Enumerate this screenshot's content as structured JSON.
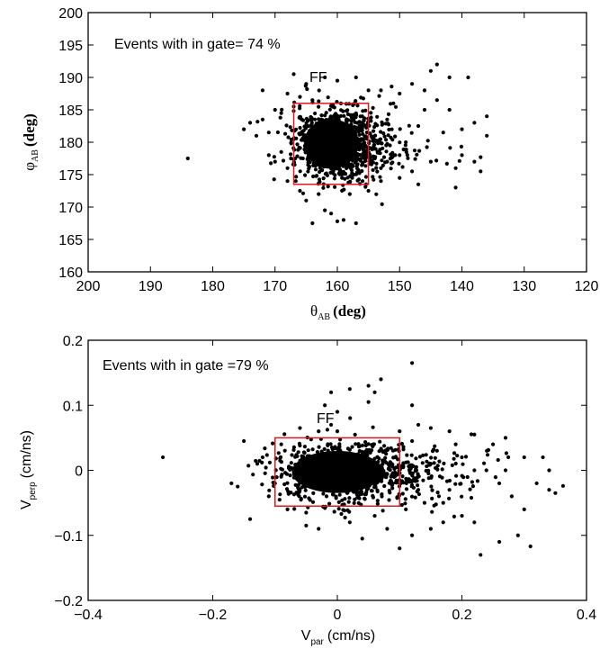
{
  "chart_data": [
    {
      "type": "scatter",
      "title": "",
      "xlabel": "θ_AB (deg)",
      "xlabel_symbol": "θ",
      "xlabel_sub": "AB",
      "xlabel_unit": "(deg)",
      "ylabel": "φ_AB (deg)",
      "ylabel_symbol": "φ",
      "ylabel_sub": "AB",
      "ylabel_unit": "(deg)",
      "x_reversed": true,
      "xlim": [
        200,
        120
      ],
      "ylim": [
        160,
        200
      ],
      "xticks": [
        200,
        190,
        180,
        170,
        160,
        150,
        140,
        130,
        120
      ],
      "yticks": [
        160,
        165,
        170,
        175,
        180,
        185,
        190,
        195,
        200
      ],
      "annotation": "Events with in gate= 74 %",
      "label_ff": "FF",
      "gate": {
        "x": [
          155,
          167
        ],
        "y": [
          173.5,
          186
        ],
        "color": "#e0191f"
      },
      "points": [
        [
          184,
          177.5
        ],
        [
          175,
          182
        ],
        [
          174,
          183
        ],
        [
          173,
          181
        ],
        [
          171,
          181.5
        ],
        [
          172,
          188
        ],
        [
          168,
          187.5
        ],
        [
          167,
          190.5
        ],
        [
          165,
          189
        ],
        [
          162,
          190
        ],
        [
          160,
          189.5
        ],
        [
          157,
          190
        ],
        [
          163,
          172
        ],
        [
          165,
          171
        ],
        [
          164,
          167.5
        ],
        [
          161,
          169
        ],
        [
          159,
          168
        ],
        [
          157,
          167.5
        ],
        [
          160,
          167.8
        ],
        [
          162,
          169.5
        ],
        [
          166,
          172.5
        ],
        [
          158,
          172
        ],
        [
          155,
          172.5
        ],
        [
          153,
          174
        ],
        [
          150,
          174.5
        ],
        [
          147,
          173.5
        ],
        [
          141,
          173
        ],
        [
          137,
          175.5
        ],
        [
          138,
          177
        ],
        [
          140,
          178
        ],
        [
          136,
          181
        ],
        [
          136,
          184
        ],
        [
          138,
          183
        ],
        [
          139,
          190
        ],
        [
          142,
          190
        ],
        [
          144,
          192
        ],
        [
          145,
          191
        ],
        [
          146,
          188
        ],
        [
          150,
          187.5
        ],
        [
          148,
          189
        ],
        [
          153,
          188
        ],
        [
          155,
          188
        ],
        [
          144,
          186.5
        ],
        [
          146,
          185
        ],
        [
          151,
          186
        ],
        [
          142,
          185
        ],
        [
          140,
          182
        ],
        [
          143,
          181.5
        ],
        [
          147,
          182.5
        ],
        [
          149,
          180
        ],
        [
          152,
          177
        ],
        [
          150,
          178
        ],
        [
          145,
          177
        ],
        [
          141,
          176
        ],
        [
          148,
          175.5
        ],
        [
          153,
          176
        ],
        [
          154,
          179
        ],
        [
          152,
          183.5
        ],
        [
          156,
          184
        ],
        [
          170,
          177
        ],
        [
          169,
          178.5
        ],
        [
          168,
          176
        ],
        [
          171,
          178
        ],
        [
          172,
          183.5
        ],
        [
          170,
          185
        ],
        [
          169,
          184.5
        ],
        [
          168,
          174
        ],
        [
          167,
          185.5
        ],
        [
          166,
          187
        ],
        [
          164,
          186.5
        ]
      ]
    },
    {
      "type": "scatter",
      "title": "",
      "xlabel": "V_par (cm/ns)",
      "xlabel_symbol": "V",
      "xlabel_sub": "par",
      "xlabel_unit": "(cm/ns)",
      "ylabel": "V_perp (cm/ns)",
      "ylabel_symbol": "V",
      "ylabel_sub": "perp",
      "ylabel_unit": "(cm/ns)",
      "xlim": [
        -0.4,
        0.4
      ],
      "ylim": [
        -0.2,
        0.2
      ],
      "xticks": [
        -0.4,
        -0.2,
        0,
        0.2,
        0.4
      ],
      "xtick_labels": [
        "−0.4",
        "−0.2",
        "0",
        "0.2",
        "0.4"
      ],
      "yticks": [
        -0.2,
        -0.1,
        0,
        0.1,
        0.2
      ],
      "ytick_labels": [
        "−0.2",
        "−0.1",
        "0",
        "0.1",
        "0.2"
      ],
      "annotation": "Events with in gate =79 %",
      "label_ff": "FF",
      "gate": {
        "x": [
          -0.1,
          0.1
        ],
        "y": [
          -0.055,
          0.05
        ],
        "color": "#e0191f"
      },
      "points": [
        [
          -0.28,
          0.02
        ],
        [
          -0.17,
          -0.02
        ],
        [
          -0.16,
          -0.025
        ],
        [
          -0.15,
          0.045
        ],
        [
          -0.14,
          -0.075
        ],
        [
          -0.12,
          0.02
        ],
        [
          -0.11,
          -0.04
        ],
        [
          -0.06,
          0.065
        ],
        [
          -0.03,
          0.06
        ],
        [
          -0.01,
          0.07
        ],
        [
          -0.02,
          0.1
        ],
        [
          0,
          0.09
        ],
        [
          -0.01,
          0.12
        ],
        [
          0.02,
          0.125
        ],
        [
          0.05,
          0.13
        ],
        [
          0.06,
          0.12
        ],
        [
          0.07,
          0.14
        ],
        [
          0.05,
          0.105
        ],
        [
          0.12,
          0.165
        ],
        [
          0.12,
          0.1
        ],
        [
          0.13,
          0.07
        ],
        [
          0.15,
          0.065
        ],
        [
          0.18,
          0.06
        ],
        [
          0.22,
          0.055
        ],
        [
          0.25,
          0.04
        ],
        [
          0.27,
          0.05
        ],
        [
          0.3,
          0.02
        ],
        [
          0.32,
          -0.02
        ],
        [
          0.34,
          -0.03
        ],
        [
          0.35,
          -0.035
        ],
        [
          0.33,
          0.02
        ],
        [
          0.29,
          -0.1
        ],
        [
          0.26,
          -0.11
        ],
        [
          0.23,
          -0.13
        ],
        [
          0.22,
          -0.08
        ],
        [
          0.2,
          -0.07
        ],
        [
          0.17,
          -0.08
        ],
        [
          0.15,
          -0.09
        ],
        [
          0.12,
          -0.1
        ],
        [
          0.1,
          -0.12
        ],
        [
          0.08,
          -0.09
        ],
        [
          0.04,
          -0.105
        ],
        [
          0.02,
          -0.08
        ],
        [
          -0.03,
          -0.09
        ],
        [
          -0.05,
          -0.085
        ],
        [
          0.3,
          -0.06
        ],
        [
          0.28,
          -0.04
        ],
        [
          0.24,
          0.03
        ],
        [
          0.2,
          0.02
        ],
        [
          0.18,
          -0.03
        ],
        [
          0.16,
          0.03
        ],
        [
          0.14,
          -0.05
        ],
        [
          0.12,
          0.045
        ],
        [
          0.13,
          -0.03
        ],
        [
          0.31,
          -0.117
        ],
        [
          0.27,
          0.0
        ],
        [
          0.22,
          0.0
        ],
        [
          0.19,
          0.04
        ],
        [
          0.17,
          -0.05
        ],
        [
          0.15,
          0.01
        ],
        [
          -0.09,
          0.04
        ],
        [
          -0.1,
          -0.02
        ],
        [
          -0.08,
          -0.06
        ],
        [
          0.11,
          -0.06
        ],
        [
          0.1,
          0.06
        ],
        [
          0.0,
          0.06
        ],
        [
          -0.05,
          -0.065
        ],
        [
          0.06,
          -0.07
        ],
        [
          0.34,
          0.0
        ],
        [
          0.26,
          -0.02
        ]
      ]
    }
  ]
}
